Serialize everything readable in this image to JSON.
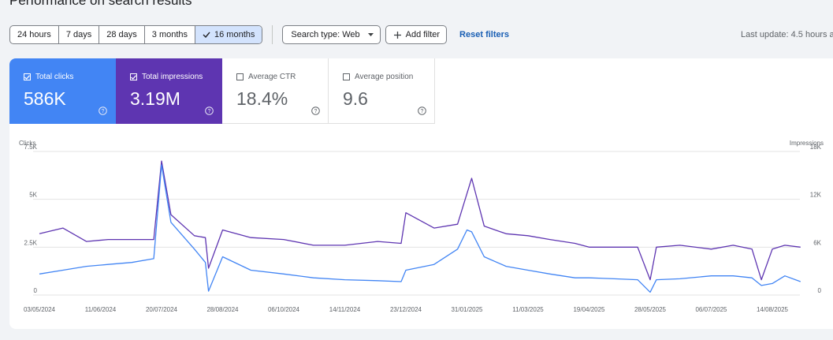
{
  "header": {
    "title": "Performance on search results"
  },
  "toolbar": {
    "ranges": [
      "24 hours",
      "7 days",
      "28 days",
      "3 months",
      "16 months"
    ],
    "selected_range": "16 months",
    "search_type": "Search type: Web",
    "add_filter": "Add filter",
    "reset_filters": "Reset filters",
    "last_update": "Last update: 4.5 hours a"
  },
  "metrics": {
    "clicks": {
      "label": "Total clicks",
      "value": "586K",
      "checked": true,
      "color": "#4285f4"
    },
    "impressions": {
      "label": "Total impressions",
      "value": "3.19M",
      "checked": true,
      "color": "#5e35b1"
    },
    "ctr": {
      "label": "Average CTR",
      "value": "18.4%",
      "checked": false
    },
    "position": {
      "label": "Average position",
      "value": "9.6",
      "checked": false
    }
  },
  "chart_data": {
    "type": "line",
    "left_axis_label": "Clicks",
    "right_axis_label": "Impressions",
    "left_ticks": [
      "7.5K",
      "5K",
      "2.5K",
      "0"
    ],
    "right_ticks": [
      "18K",
      "12K",
      "6K",
      "0"
    ],
    "left_ylim": [
      0,
      7500
    ],
    "right_ylim": [
      0,
      18000
    ],
    "x_labels": [
      "03/05/2024",
      "11/06/2024",
      "20/07/2024",
      "28/08/2024",
      "06/10/2024",
      "14/11/2024",
      "23/12/2024",
      "31/01/2025",
      "11/03/2025",
      "19/04/2025",
      "28/05/2025",
      "06/07/2025",
      "14/08/2025"
    ],
    "x": [
      "03/05/2024",
      "18/05/2024",
      "02/06/2024",
      "16/06/2024",
      "01/07/2024",
      "15/07/2024",
      "20/07/2024",
      "26/07/2024",
      "10/08/2024",
      "17/08/2024",
      "19/08/2024",
      "28/08/2024",
      "15/09/2024",
      "06/10/2024",
      "25/10/2024",
      "14/11/2024",
      "05/12/2024",
      "20/12/2024",
      "23/12/2024",
      "10/01/2025",
      "25/01/2025",
      "31/01/2025",
      "03/02/2025",
      "11/02/2025",
      "25/02/2025",
      "11/03/2025",
      "25/03/2025",
      "10/04/2025",
      "19/04/2025",
      "05/05/2025",
      "20/05/2025",
      "28/05/2025",
      "01/06/2025",
      "16/06/2025",
      "06/07/2025",
      "20/07/2025",
      "01/08/2025",
      "07/08/2025",
      "14/08/2025",
      "22/08/2025",
      "01/09/2025"
    ],
    "series": [
      {
        "name": "Total clicks",
        "color": "#4285f4",
        "axis": "left",
        "values": [
          1100,
          1300,
          1500,
          1600,
          1700,
          1900,
          6800,
          3800,
          2400,
          1700,
          200,
          2000,
          1300,
          1100,
          900,
          800,
          750,
          700,
          1300,
          1600,
          2400,
          3400,
          3300,
          2000,
          1500,
          1300,
          1100,
          900,
          900,
          850,
          800,
          150,
          800,
          850,
          1000,
          1000,
          900,
          500,
          600,
          1000,
          700
        ]
      },
      {
        "name": "Total impressions",
        "color": "#5e35b1",
        "axis": "left",
        "values": [
          3200,
          3500,
          2800,
          2900,
          2900,
          2900,
          7000,
          4200,
          3100,
          3000,
          1400,
          3400,
          3000,
          2900,
          2600,
          2600,
          2800,
          2700,
          4300,
          3500,
          3700,
          5300,
          6100,
          3600,
          3200,
          3100,
          2900,
          2700,
          2500,
          2500,
          2500,
          800,
          2500,
          2600,
          2400,
          2600,
          2400,
          800,
          2400,
          2600,
          2500
        ]
      }
    ]
  }
}
